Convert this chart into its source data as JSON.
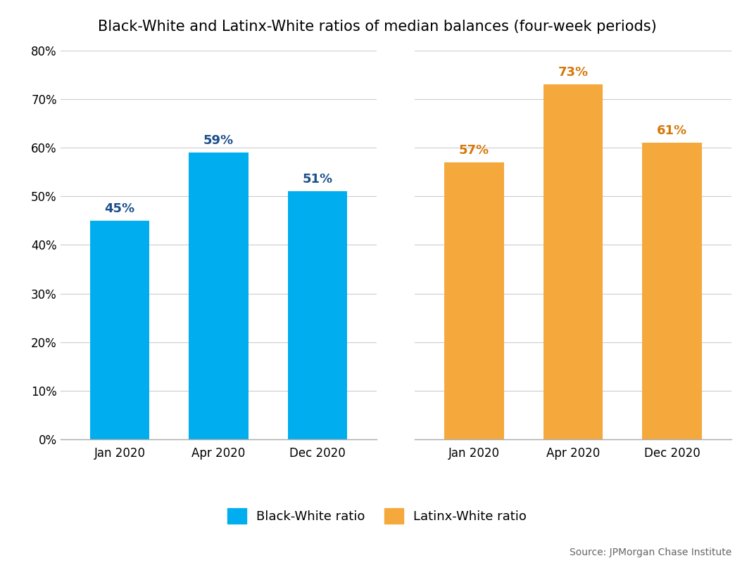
{
  "title": "Black-White and Latinx-White ratios of median balances (four-week periods)",
  "categories": [
    "Jan 2020",
    "Apr 2020",
    "Dec 2020"
  ],
  "black_white_values": [
    45,
    59,
    51
  ],
  "latinx_white_values": [
    57,
    73,
    61
  ],
  "bar_color_blue": "#00AEEF",
  "bar_color_orange": "#F5A83C",
  "label_color_blue": "#1B4F8A",
  "label_color_orange": "#D4780A",
  "ylim": [
    0,
    80
  ],
  "yticks": [
    0,
    10,
    20,
    30,
    40,
    50,
    60,
    70,
    80
  ],
  "ytick_labels": [
    "0%",
    "10%",
    "20%",
    "30%",
    "40%",
    "50%",
    "60%",
    "70%",
    "80%"
  ],
  "legend_blue_label": "Black-White ratio",
  "legend_orange_label": "Latinx-White ratio",
  "source_text": "Source: JPMorgan Chase Institute",
  "background_color": "#ffffff",
  "grid_color": "#cccccc",
  "title_fontsize": 15,
  "label_fontsize": 13,
  "tick_fontsize": 12,
  "legend_fontsize": 13,
  "source_fontsize": 10
}
